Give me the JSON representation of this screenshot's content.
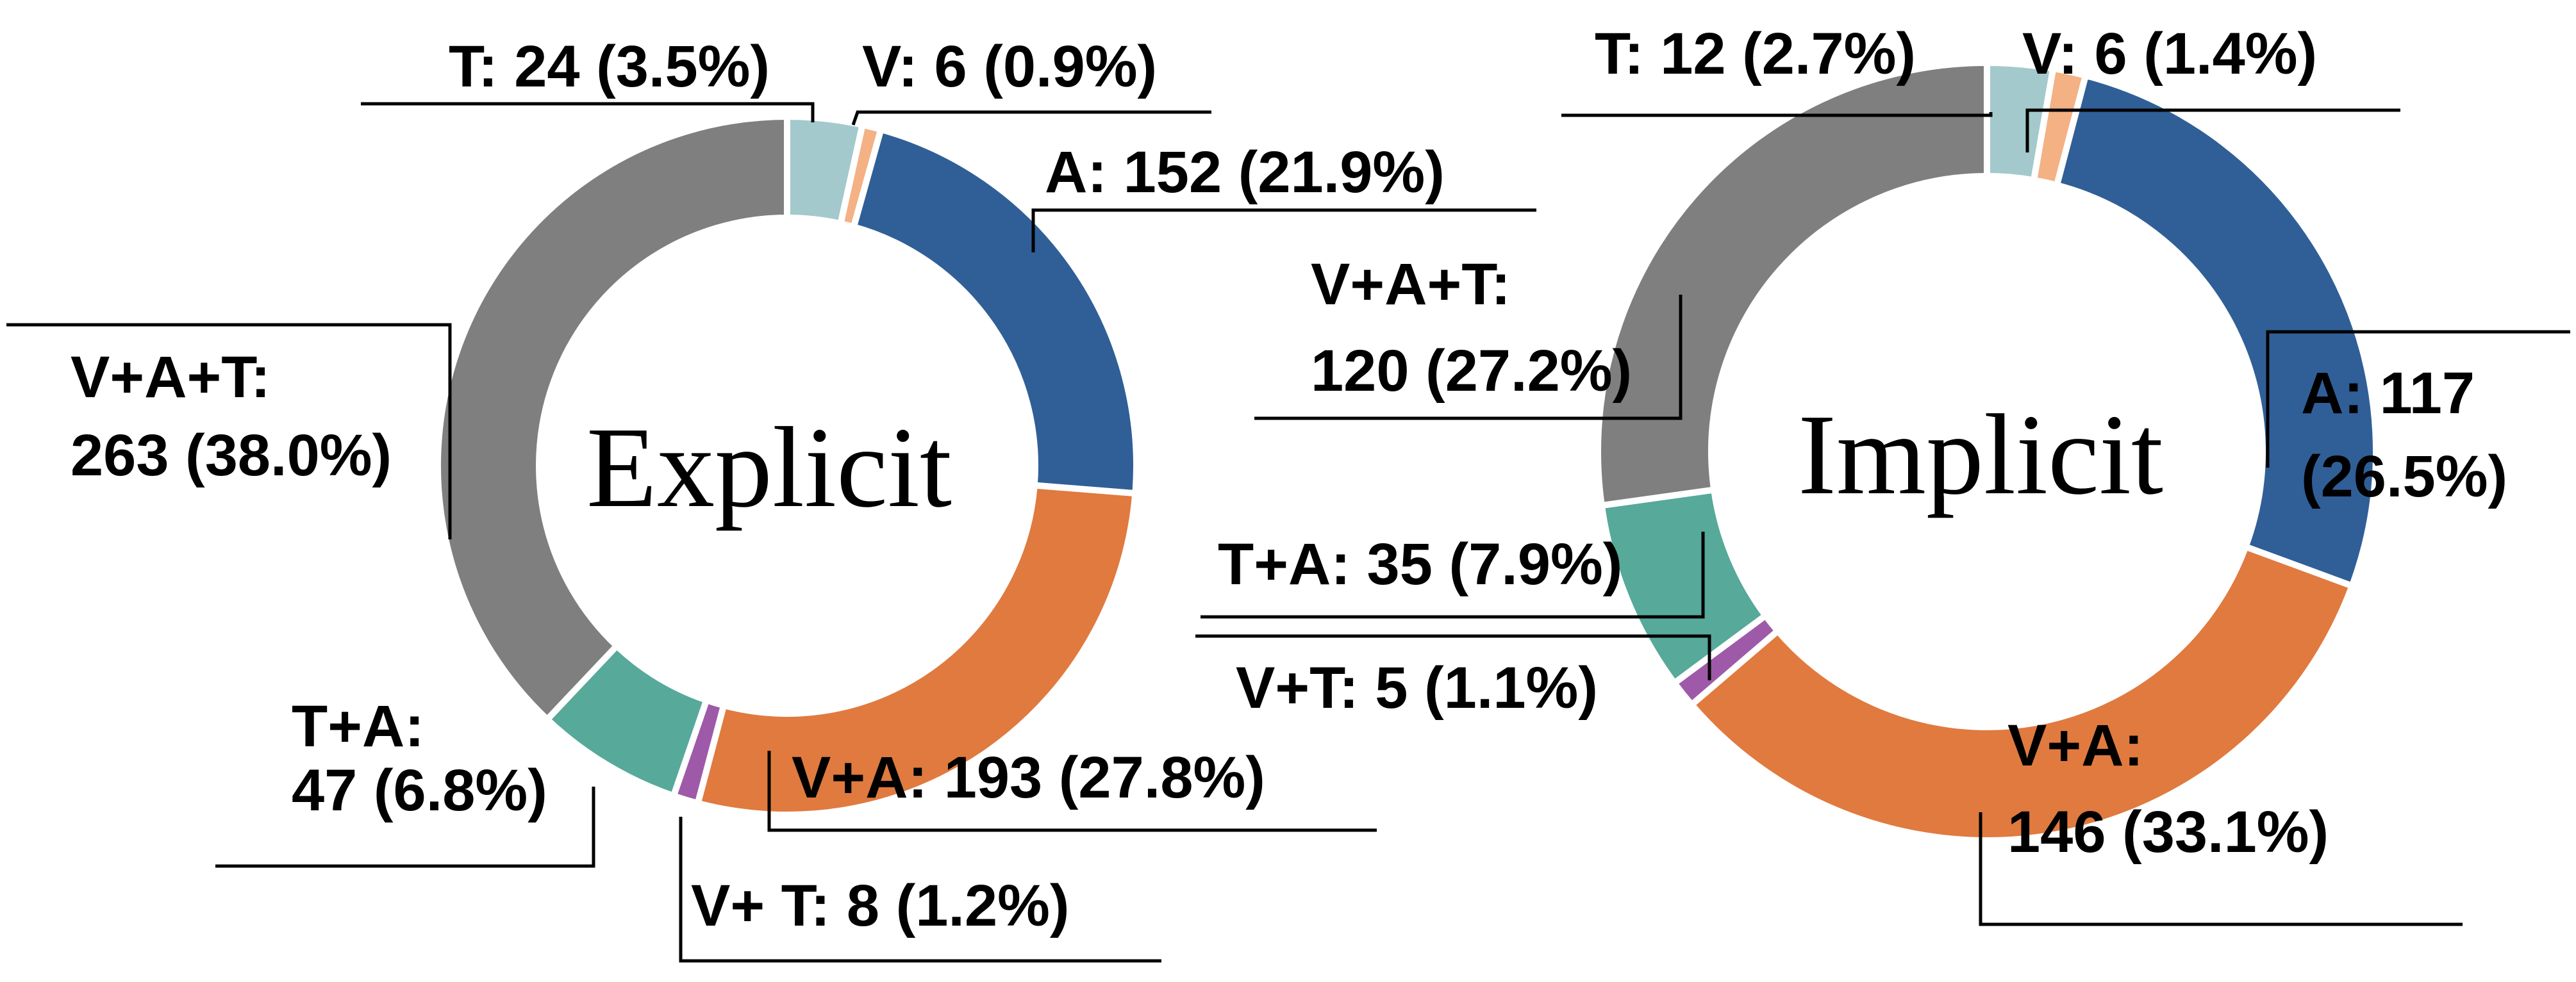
{
  "chart_data": [
    {
      "type": "pie",
      "style": "donut",
      "center_label": "Explicit",
      "slices": [
        {
          "category": "T",
          "value": 24,
          "percent": 3.5,
          "color": "#a3c9cc",
          "label_lines": [
            "T: 24 (3.5%)"
          ]
        },
        {
          "category": "V",
          "value": 6,
          "percent": 0.9,
          "color": "#f4b183",
          "label_lines": [
            "V: 6 (0.9%)"
          ]
        },
        {
          "category": "A",
          "value": 152,
          "percent": 21.9,
          "color": "#305f97",
          "label_lines": [
            "A: 152 (21.9%)"
          ]
        },
        {
          "category": "V+A",
          "value": 193,
          "percent": 27.8,
          "color": "#e07a3f",
          "label_lines": [
            "V+A: 193 (27.8%)"
          ]
        },
        {
          "category": "V+ T",
          "value": 8,
          "percent": 1.2,
          "color": "#9e5aa8",
          "label_lines": [
            "V+ T: 8 (1.2%)"
          ]
        },
        {
          "category": "T+A",
          "value": 47,
          "percent": 6.8,
          "color": "#57a99a",
          "label_lines": [
            "T+A:",
            "47 (6.8%)"
          ]
        },
        {
          "category": "V+A+T",
          "value": 263,
          "percent": 38.0,
          "color": "#7f7f7f",
          "label_lines": [
            "V+A+T:",
            "263 (38.0%)"
          ]
        }
      ]
    },
    {
      "type": "pie",
      "style": "donut",
      "center_label": "Implicit",
      "slices": [
        {
          "category": "T",
          "value": 12,
          "percent": 2.7,
          "color": "#a3c9cc",
          "label_lines": [
            "T: 12 (2.7%)"
          ]
        },
        {
          "category": "V",
          "value": 6,
          "percent": 1.4,
          "color": "#f4b183",
          "label_lines": [
            "V: 6 (1.4%)"
          ]
        },
        {
          "category": "A",
          "value": 117,
          "percent": 26.5,
          "color": "#305f97",
          "label_lines": [
            "A: 117",
            "(26.5%)"
          ]
        },
        {
          "category": "V+A",
          "value": 146,
          "percent": 33.1,
          "color": "#e07a3f",
          "label_lines": [
            "V+A:",
            "146 (33.1%)"
          ]
        },
        {
          "category": "V+T",
          "value": 5,
          "percent": 1.1,
          "color": "#9e5aa8",
          "label_lines": [
            "V+T: 5 (1.1%)"
          ]
        },
        {
          "category": "T+A",
          "value": 35,
          "percent": 7.9,
          "color": "#57a99a",
          "label_lines": [
            "T+A: 35 (7.9%)"
          ]
        },
        {
          "category": "V+A+T",
          "value": 120,
          "percent": 27.2,
          "color": "#7f7f7f",
          "label_lines": [
            "V+A+T:",
            "120 (27.2%)"
          ]
        }
      ]
    }
  ]
}
